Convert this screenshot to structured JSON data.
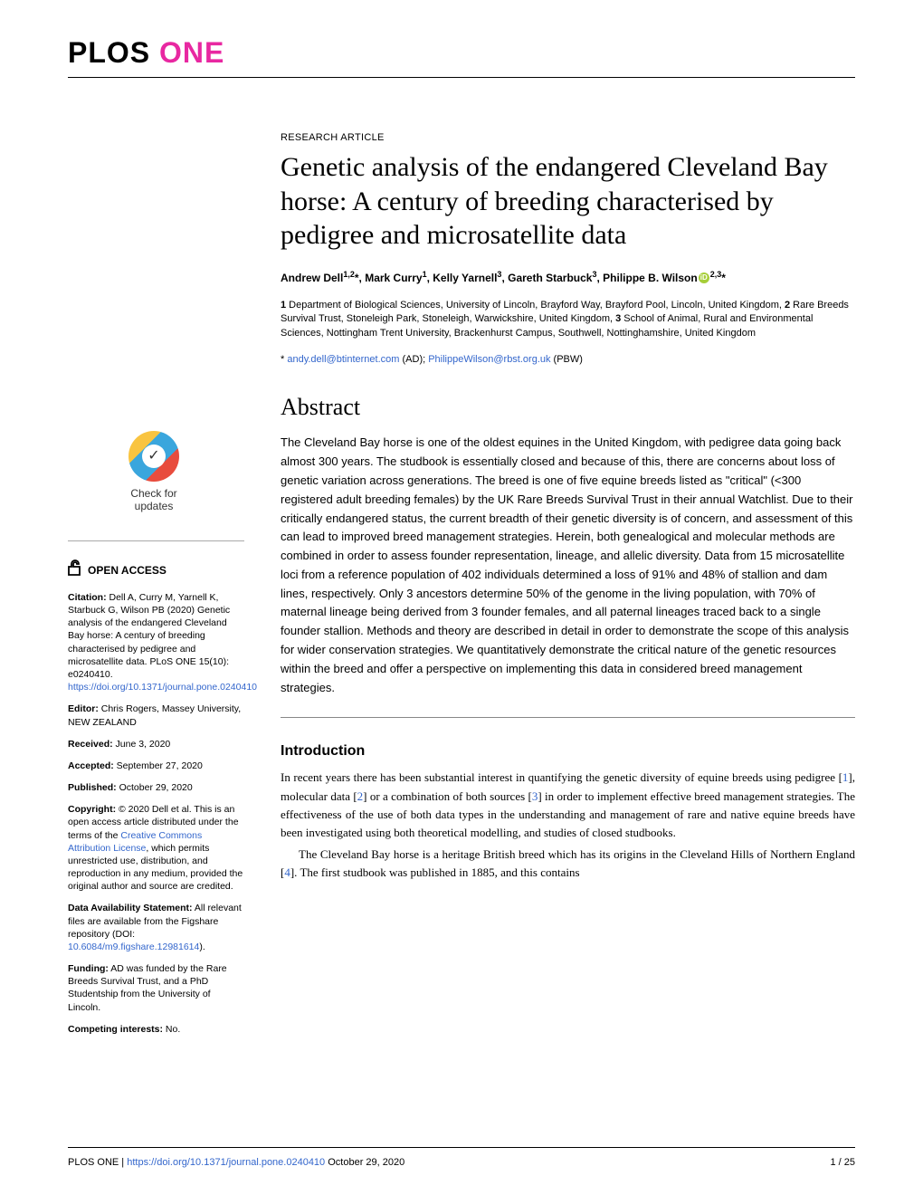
{
  "journal": {
    "plos": "PLOS",
    "one": "ONE"
  },
  "check_updates": {
    "line1": "Check for",
    "line2": "updates",
    "symbol": "✓"
  },
  "open_access_label": "OPEN ACCESS",
  "sidebar": {
    "citation_label": "Citation:",
    "citation_text": " Dell A, Curry M, Yarnell K, Starbuck G, Wilson PB (2020) Genetic analysis of the endangered Cleveland Bay horse: A century of breeding characterised by pedigree and microsatellite data. PLoS ONE 15(10): e0240410. ",
    "citation_doi": "https://doi.org/10.1371/journal.pone.0240410",
    "editor_label": "Editor:",
    "editor_text": " Chris Rogers, Massey University, NEW ZEALAND",
    "received_label": "Received:",
    "received_text": " June 3, 2020",
    "accepted_label": "Accepted:",
    "accepted_text": " September 27, 2020",
    "published_label": "Published:",
    "published_text": " October 29, 2020",
    "copyright_label": "Copyright:",
    "copyright_text_a": " © 2020 Dell et al. This is an open access article distributed under the terms of the ",
    "copyright_link": "Creative Commons Attribution License",
    "copyright_text_b": ", which permits unrestricted use, distribution, and reproduction in any medium, provided the original author and source are credited.",
    "data_label": "Data Availability Statement:",
    "data_text_a": " All relevant files are available from the Figshare repository (DOI: ",
    "data_link": "10.6084/m9.figshare.12981614",
    "data_text_b": ").",
    "funding_label": "Funding:",
    "funding_text": " AD was funded by the Rare Breeds Survival Trust, and a PhD Studentship from the University of Lincoln.",
    "competing_label": "Competing interests:",
    "competing_text": " No."
  },
  "article": {
    "type": "RESEARCH ARTICLE",
    "title": "Genetic analysis of the endangered Cleveland Bay horse: A century of breeding characterised by pedigree and microsatellite data",
    "authors_html": "Andrew Dell<sup>1,2</sup>*, Mark Curry<sup>1</sup>, Kelly Yarnell<sup>3</sup>, Gareth Starbuck<sup>3</sup>, Philippe B. Wilson<span class='orcid'>iD</span><sup>2,3</sup>*",
    "affiliations_html": "<b>1</b> Department of Biological Sciences, University of Lincoln, Brayford Way, Brayford Pool, Lincoln, United Kingdom, <b>2</b> Rare Breeds Survival Trust, Stoneleigh Park, Stoneleigh, Warwickshire, United Kingdom, <b>3</b> School of Animal, Rural and Environmental Sciences, Nottingham Trent University, Brackenhurst Campus, Southwell, Nottinghamshire, United Kingdom",
    "corr_prefix": "* ",
    "corr_email1": "andy.dell@btinternet.com",
    "corr_mid": " (AD); ",
    "corr_email2": "PhilippeWilson@rbst.org.uk",
    "corr_suffix": " (PBW)",
    "abstract_heading": "Abstract",
    "abstract": "The Cleveland Bay horse is one of the oldest equines in the United Kingdom, with pedigree data going back almost 300 years. The studbook is essentially closed and because of this, there are concerns about loss of genetic variation across generations. The breed is one of five equine breeds listed as \"critical\" (<300 registered adult breeding females) by the UK Rare Breeds Survival Trust in their annual Watchlist. Due to their critically endangered status, the current breadth of their genetic diversity is of concern, and assessment of this can lead to improved breed management strategies. Herein, both genealogical and molecular methods are combined in order to assess founder representation, lineage, and allelic diversity. Data from 15 microsatellite loci from a reference population of 402 individuals determined a loss of 91% and 48% of stallion and dam lines, respectively. Only 3 ancestors determine 50% of the genome in the living population, with 70% of maternal lineage being derived from 3 founder females, and all paternal lineages traced back to a single founder stallion. Methods and theory are described in detail in order to demonstrate the scope of this analysis for wider conservation strategies. We quantitatively demonstrate the critical nature of the genetic resources within the breed and offer a perspective on implementing this data in considered breed management strategies.",
    "intro_heading": "Introduction",
    "intro_p1_a": "In recent years there has been substantial interest in quantifying the genetic diversity of equine breeds using pedigree [",
    "ref1": "1",
    "intro_p1_b": "], molecular data [",
    "ref2": "2",
    "intro_p1_c": "] or a combination of both sources [",
    "ref3": "3",
    "intro_p1_d": "] in order to implement effective breed management strategies. The effectiveness of the use of both data types in the understanding and management of rare and native equine breeds have been investigated using both theoretical modelling, and studies of closed studbooks.",
    "intro_p2_a": "The Cleveland Bay horse is a heritage British breed which has its origins in the Cleveland Hills of Northern England [",
    "ref4": "4",
    "intro_p2_b": "]. The first studbook was published in 1885, and this contains"
  },
  "footer": {
    "left_a": "PLOS ONE | ",
    "doi": "https://doi.org/10.1371/journal.pone.0240410",
    "date": "   October 29, 2020",
    "page": "1 / 25"
  }
}
